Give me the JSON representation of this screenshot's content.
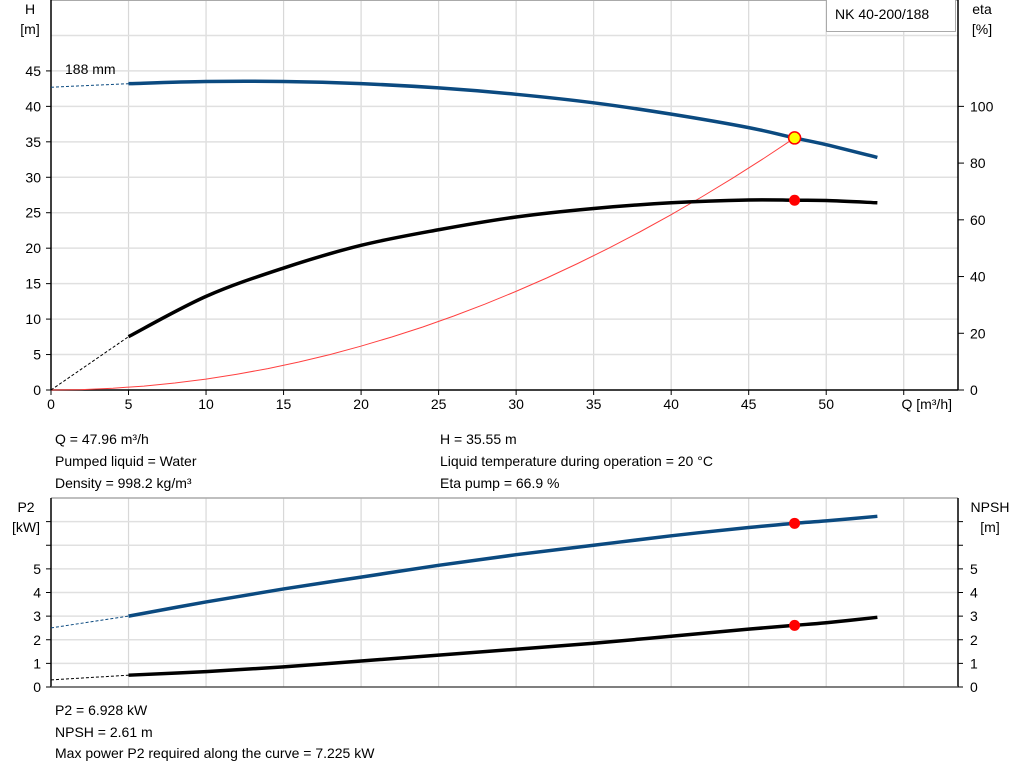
{
  "chart_data": [
    {
      "type": "line",
      "title": "",
      "pump_label": "NK 40-200/188",
      "curve_label": "188 mm",
      "xlabel": "Q [m³/h]",
      "ylabel_left": [
        "H",
        "[m]"
      ],
      "ylabel_right": [
        "eta",
        "[%]"
      ],
      "xlim": [
        0,
        58.5
      ],
      "ylim_left": [
        0,
        55
      ],
      "ylim_right": [
        0,
        137.5
      ],
      "x_ticks": [
        0,
        5,
        10,
        15,
        20,
        25,
        30,
        35,
        40,
        45,
        50
      ],
      "y_ticks_left": [
        0,
        5,
        10,
        15,
        20,
        25,
        30,
        35,
        40,
        45
      ],
      "y_ticks_right": [
        0,
        20,
        40,
        60,
        80,
        100
      ],
      "grid": true,
      "colors": {
        "head": "#0b4a80",
        "eta": "#000000",
        "system": "#ff4040",
        "duty_point_fill": "#ffff00",
        "duty_point_edge": "#ff0000",
        "marker": "#ff0000"
      },
      "series": [
        {
          "key": "head",
          "axis": "left",
          "extrapolated": [
            [
              0,
              42.7
            ],
            [
              5,
              43.2
            ]
          ],
          "points": [
            [
              5,
              43.2
            ],
            [
              10,
              43.5
            ],
            [
              15,
              43.5
            ],
            [
              20,
              43.2
            ],
            [
              25,
              42.6
            ],
            [
              30,
              41.7
            ],
            [
              35,
              40.5
            ],
            [
              40,
              38.9
            ],
            [
              45,
              37.0
            ],
            [
              47.96,
              35.55
            ],
            [
              50,
              34.6
            ],
            [
              53.3,
              32.8
            ]
          ]
        },
        {
          "key": "eta",
          "axis": "right",
          "extrapolated": [
            [
              0,
              0
            ],
            [
              5,
              18.8
            ]
          ],
          "points": [
            [
              5,
              18.8
            ],
            [
              10,
              33
            ],
            [
              15,
              43
            ],
            [
              20,
              51
            ],
            [
              25,
              56.5
            ],
            [
              30,
              61
            ],
            [
              35,
              64
            ],
            [
              40,
              66
            ],
            [
              45,
              67
            ],
            [
              47.96,
              66.9
            ],
            [
              50,
              66.8
            ],
            [
              53.3,
              66
            ]
          ]
        },
        {
          "key": "system",
          "axis": "left",
          "type": "parabola",
          "through": [
            47.96,
            35.55
          ]
        }
      ],
      "duty_point": {
        "Q": 47.96,
        "H": 35.55,
        "eta": 66.9
      }
    },
    {
      "type": "line",
      "title": "",
      "ylabel_left": [
        "P2",
        "[kW]"
      ],
      "ylabel_right": [
        "NPSH",
        "[m]"
      ],
      "xlim": [
        0,
        58.5
      ],
      "ylim": [
        0,
        8
      ],
      "y_ticks_labeled": [
        0,
        1,
        2,
        3,
        4,
        5
      ],
      "y_ticks_unlabeled": [
        6,
        7
      ],
      "grid": true,
      "colors": {
        "p2": "#0b4a80",
        "npsh": "#000000",
        "marker": "#ff0000"
      },
      "series": [
        {
          "key": "p2",
          "extrapolated": [
            [
              0,
              2.5
            ],
            [
              5,
              3.0
            ]
          ],
          "points": [
            [
              5,
              3.0
            ],
            [
              10,
              3.6
            ],
            [
              15,
              4.15
            ],
            [
              20,
              4.65
            ],
            [
              25,
              5.15
            ],
            [
              30,
              5.6
            ],
            [
              35,
              6.0
            ],
            [
              40,
              6.4
            ],
            [
              45,
              6.75
            ],
            [
              47.96,
              6.928
            ],
            [
              50,
              7.03
            ],
            [
              53.3,
              7.225
            ]
          ]
        },
        {
          "key": "npsh",
          "extrapolated": [
            [
              0,
              0.3
            ],
            [
              5,
              0.5
            ]
          ],
          "points": [
            [
              5,
              0.5
            ],
            [
              10,
              0.65
            ],
            [
              15,
              0.85
            ],
            [
              20,
              1.1
            ],
            [
              25,
              1.35
            ],
            [
              30,
              1.6
            ],
            [
              35,
              1.85
            ],
            [
              40,
              2.15
            ],
            [
              45,
              2.45
            ],
            [
              47.96,
              2.61
            ],
            [
              50,
              2.72
            ],
            [
              53.3,
              2.95
            ]
          ]
        }
      ],
      "duty_point": {
        "Q": 47.96,
        "P2": 6.928,
        "NPSH": 2.61
      }
    }
  ],
  "info_top": {
    "q": "Q = 47.96 m³/h",
    "liquid": "Pumped liquid = Water",
    "density": "Density = 998.2 kg/m³",
    "h": "H = 35.55 m",
    "temp": "Liquid temperature during operation = 20 °C",
    "eta": "Eta pump = 66.9 %"
  },
  "info_bottom": {
    "p2": "P2 = 6.928 kW",
    "npsh": "NPSH = 2.61 m",
    "max_power": "Max power P2 required along the curve = 7.225 kW"
  }
}
